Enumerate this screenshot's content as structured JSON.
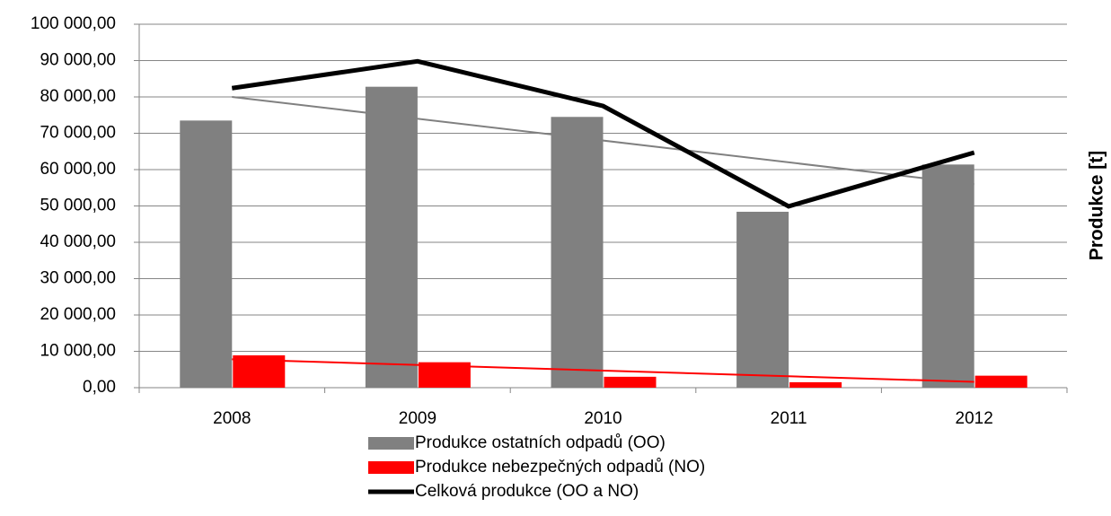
{
  "chart_data": {
    "type": "bar",
    "y_axis_label": "Produkce [t]",
    "categories": [
      "2008",
      "2009",
      "2010",
      "2011",
      "2012"
    ],
    "series": [
      {
        "name": "Produkce ostatních odpadů (OO)",
        "color": "#808080",
        "values": [
          73500,
          82800,
          74500,
          48400,
          61400
        ]
      },
      {
        "name": "Produkce nebezpečných odpadů (NO)",
        "color": "#ff0000",
        "values": [
          8900,
          7000,
          3000,
          1500,
          3300
        ]
      },
      {
        "name": "Celková produkce (OO a NO)",
        "color": "#000000",
        "type": "line",
        "values": [
          82400,
          89800,
          77500,
          49900,
          64700
        ]
      }
    ],
    "trendlines": [
      {
        "color": "#808080",
        "values": [
          80000,
          56000
        ]
      },
      {
        "color": "#ff0000",
        "values": [
          7800,
          1600
        ]
      }
    ],
    "ylim": [
      0,
      100000
    ],
    "yticks": [
      {
        "value": 0,
        "label": "0,00"
      },
      {
        "value": 10000,
        "label": "10 000,00"
      },
      {
        "value": 20000,
        "label": "20 000,00"
      },
      {
        "value": 30000,
        "label": "30 000,00"
      },
      {
        "value": 40000,
        "label": "40 000,00"
      },
      {
        "value": 50000,
        "label": "50 000,00"
      },
      {
        "value": 60000,
        "label": "60 000,00"
      },
      {
        "value": 70000,
        "label": "70 000,00"
      },
      {
        "value": 80000,
        "label": "80 000,00"
      },
      {
        "value": 90000,
        "label": "90 000,00"
      },
      {
        "value": 100000,
        "label": "100 000,00"
      }
    ],
    "grid": true,
    "legend": "bottom"
  }
}
